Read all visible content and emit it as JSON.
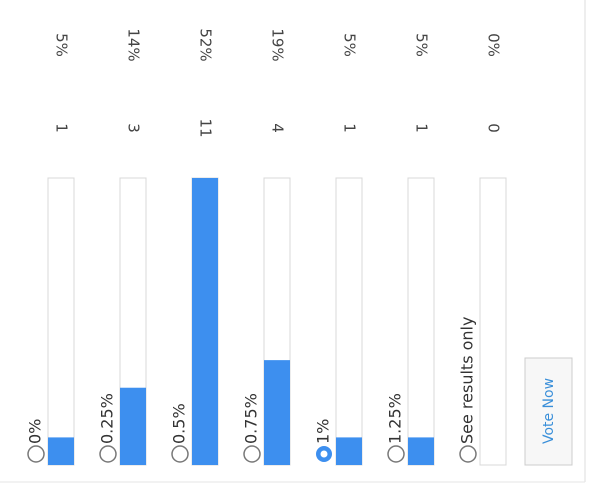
{
  "poll": {
    "options": [
      {
        "label": "0%",
        "votes": 1,
        "percent": 5,
        "percent_label": "5%"
      },
      {
        "label": "0.25%",
        "votes": 3,
        "percent": 14,
        "percent_label": "14%"
      },
      {
        "label": "0.5%",
        "votes": 11,
        "percent": 52,
        "percent_label": "52%"
      },
      {
        "label": "0.75%",
        "votes": 4,
        "percent": 19,
        "percent_label": "19%"
      },
      {
        "label": "1%",
        "votes": 1,
        "percent": 5,
        "percent_label": "5%"
      },
      {
        "label": "1.25%",
        "votes": 1,
        "percent": 5,
        "percent_label": "5%"
      },
      {
        "label": "See results only",
        "votes": 0,
        "percent": 0,
        "percent_label": "0%"
      }
    ],
    "selected": 4,
    "bar_color": "#3d8fef",
    "button": "Vote Now"
  }
}
